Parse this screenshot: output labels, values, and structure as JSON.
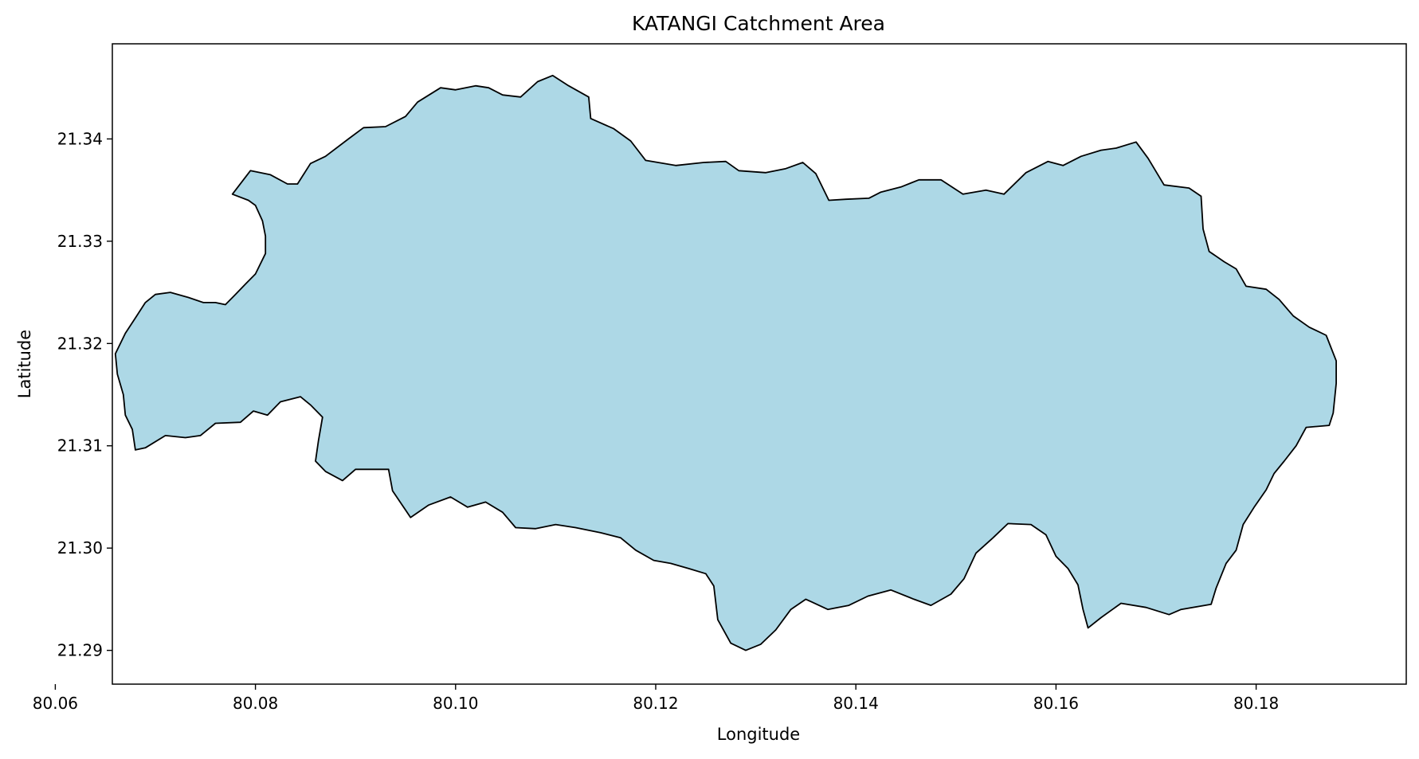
{
  "title": "KATANGI Catchment Area",
  "xlabel": "Longitude",
  "ylabel": "Latitude",
  "colors": {
    "fill": "#add8e6",
    "outline": "#000000"
  },
  "axes": {
    "xlim": [
      80.0657,
      80.195
    ],
    "ylim": [
      21.2867,
      21.3493
    ],
    "xticks": [
      {
        "value": 80.06,
        "label": "80.06"
      },
      {
        "value": 80.08,
        "label": "80.08"
      },
      {
        "value": 80.1,
        "label": "80.10"
      },
      {
        "value": 80.12,
        "label": "80.12"
      },
      {
        "value": 80.14,
        "label": "80.14"
      },
      {
        "value": 80.16,
        "label": "80.16"
      },
      {
        "value": 80.18,
        "label": "80.18"
      }
    ],
    "yticks": [
      {
        "value": 21.29,
        "label": "21.29"
      },
      {
        "value": 21.3,
        "label": "21.30"
      },
      {
        "value": 21.31,
        "label": "21.31"
      },
      {
        "value": 21.32,
        "label": "21.32"
      },
      {
        "value": 21.33,
        "label": "21.33"
      },
      {
        "value": 21.34,
        "label": "21.34"
      }
    ]
  },
  "chart_data": {
    "type": "area",
    "title": "KATANGI Catchment Area",
    "xlabel": "Longitude",
    "ylabel": "Latitude",
    "grid": false,
    "boundary": [
      [
        80.0777,
        21.3346
      ],
      [
        80.0795,
        21.3369
      ],
      [
        80.0815,
        21.3365
      ],
      [
        80.0832,
        21.3356
      ],
      [
        80.0842,
        21.3356
      ],
      [
        80.0855,
        21.3376
      ],
      [
        80.087,
        21.3383
      ],
      [
        80.0893,
        21.34
      ],
      [
        80.0908,
        21.3411
      ],
      [
        80.093,
        21.3412
      ],
      [
        80.095,
        21.3422
      ],
      [
        80.0962,
        21.3436
      ],
      [
        80.0985,
        21.345
      ],
      [
        80.1,
        21.3448
      ],
      [
        80.102,
        21.3452
      ],
      [
        80.1033,
        21.345
      ],
      [
        80.1047,
        21.3443
      ],
      [
        80.1065,
        21.3441
      ],
      [
        80.1082,
        21.3456
      ],
      [
        80.1097,
        21.3462
      ],
      [
        80.1113,
        21.3452
      ],
      [
        80.1133,
        21.3441
      ],
      [
        80.1135,
        21.342
      ],
      [
        80.1158,
        21.341
      ],
      [
        80.1175,
        21.3398
      ],
      [
        80.119,
        21.3379
      ],
      [
        80.122,
        21.3374
      ],
      [
        80.1248,
        21.3377
      ],
      [
        80.127,
        21.3378
      ],
      [
        80.1283,
        21.3369
      ],
      [
        80.131,
        21.3367
      ],
      [
        80.133,
        21.3371
      ],
      [
        80.1347,
        21.3377
      ],
      [
        80.136,
        21.3366
      ],
      [
        80.1373,
        21.334
      ],
      [
        80.139,
        21.3341
      ],
      [
        80.1413,
        21.3342
      ],
      [
        80.1425,
        21.3348
      ],
      [
        80.1445,
        21.3353
      ],
      [
        80.1463,
        21.336
      ],
      [
        80.1485,
        21.336
      ],
      [
        80.1507,
        21.3346
      ],
      [
        80.153,
        21.335
      ],
      [
        80.1548,
        21.3346
      ],
      [
        80.157,
        21.3367
      ],
      [
        80.1592,
        21.3378
      ],
      [
        80.1607,
        21.3374
      ],
      [
        80.1625,
        21.3383
      ],
      [
        80.1645,
        21.3389
      ],
      [
        80.166,
        21.3391
      ],
      [
        80.168,
        21.3397
      ],
      [
        80.1692,
        21.3381
      ],
      [
        80.1708,
        21.3355
      ],
      [
        80.1733,
        21.3352
      ],
      [
        80.1745,
        21.3344
      ],
      [
        80.1747,
        21.3312
      ],
      [
        80.1753,
        21.329
      ],
      [
        80.1768,
        21.328
      ],
      [
        80.178,
        21.3273
      ],
      [
        80.179,
        21.3256
      ],
      [
        80.181,
        21.3253
      ],
      [
        80.1823,
        21.3243
      ],
      [
        80.1837,
        21.3227
      ],
      [
        80.1853,
        21.3216
      ],
      [
        80.187,
        21.3208
      ],
      [
        80.188,
        21.3183
      ],
      [
        80.188,
        21.3161
      ],
      [
        80.1877,
        21.3132
      ],
      [
        80.1873,
        21.312
      ],
      [
        80.185,
        21.3118
      ],
      [
        80.184,
        21.31
      ],
      [
        80.1828,
        21.3085
      ],
      [
        80.1818,
        21.3073
      ],
      [
        80.181,
        21.3057
      ],
      [
        80.1798,
        21.304
      ],
      [
        80.1787,
        21.3023
      ],
      [
        80.178,
        21.2998
      ],
      [
        80.177,
        21.2985
      ],
      [
        80.176,
        21.2961
      ],
      [
        80.1755,
        21.2945
      ],
      [
        80.1725,
        21.294
      ],
      [
        80.1713,
        21.2935
      ],
      [
        80.169,
        21.2942
      ],
      [
        80.1665,
        21.2946
      ],
      [
        80.1645,
        21.2932
      ],
      [
        80.1632,
        21.2922
      ],
      [
        80.1627,
        21.294
      ],
      [
        80.1622,
        21.2964
      ],
      [
        80.1612,
        21.298
      ],
      [
        80.16,
        21.2992
      ],
      [
        80.159,
        21.3013
      ],
      [
        80.1575,
        21.3023
      ],
      [
        80.1552,
        21.3024
      ],
      [
        80.1537,
        21.301
      ],
      [
        80.152,
        21.2995
      ],
      [
        80.1508,
        21.297
      ],
      [
        80.1495,
        21.2955
      ],
      [
        80.1475,
        21.2944
      ],
      [
        80.1458,
        21.295
      ],
      [
        80.1435,
        21.2959
      ],
      [
        80.1412,
        21.2953
      ],
      [
        80.1393,
        21.2944
      ],
      [
        80.1372,
        21.294
      ],
      [
        80.135,
        21.295
      ],
      [
        80.1335,
        21.294
      ],
      [
        80.132,
        21.292
      ],
      [
        80.1305,
        21.2906
      ],
      [
        80.129,
        21.29
      ],
      [
        80.1275,
        21.2907
      ],
      [
        80.1262,
        21.293
      ],
      [
        80.1258,
        21.2963
      ],
      [
        80.125,
        21.2975
      ],
      [
        80.1233,
        21.298
      ],
      [
        80.1215,
        21.2985
      ],
      [
        80.1198,
        21.2988
      ],
      [
        80.118,
        21.2998
      ],
      [
        80.1165,
        21.301
      ],
      [
        80.1145,
        21.3015
      ],
      [
        80.112,
        21.302
      ],
      [
        80.11,
        21.3023
      ],
      [
        80.108,
        21.3019
      ],
      [
        80.106,
        21.302
      ],
      [
        80.1047,
        21.3035
      ],
      [
        80.103,
        21.3045
      ],
      [
        80.1012,
        21.304
      ],
      [
        80.0995,
        21.305
      ],
      [
        80.0973,
        21.3042
      ],
      [
        80.0955,
        21.303
      ],
      [
        80.0937,
        21.3056
      ],
      [
        80.0933,
        21.3077
      ],
      [
        80.09,
        21.3077
      ],
      [
        80.0887,
        21.3066
      ],
      [
        80.087,
        21.3075
      ],
      [
        80.086,
        21.3085
      ],
      [
        80.0863,
        21.3105
      ],
      [
        80.0867,
        21.3128
      ],
      [
        80.0855,
        21.314
      ],
      [
        80.0845,
        21.3148
      ],
      [
        80.0825,
        21.3143
      ],
      [
        80.0812,
        21.313
      ],
      [
        80.0798,
        21.3134
      ],
      [
        80.0785,
        21.3123
      ],
      [
        80.076,
        21.3122
      ],
      [
        80.0745,
        21.311
      ],
      [
        80.073,
        21.3108
      ],
      [
        80.071,
        21.311
      ],
      [
        80.069,
        21.3098
      ],
      [
        80.068,
        21.3096
      ],
      [
        80.0677,
        21.3116
      ],
      [
        80.067,
        21.313
      ],
      [
        80.0668,
        21.315
      ],
      [
        80.0662,
        21.317
      ],
      [
        80.066,
        21.319
      ],
      [
        80.067,
        21.321
      ],
      [
        80.068,
        21.3225
      ],
      [
        80.069,
        21.324
      ],
      [
        80.07,
        21.3248
      ],
      [
        80.0715,
        21.325
      ],
      [
        80.0733,
        21.3245
      ],
      [
        80.0748,
        21.324
      ],
      [
        80.076,
        21.324
      ],
      [
        80.077,
        21.3238
      ],
      [
        80.078,
        21.3248
      ],
      [
        80.079,
        21.3258
      ],
      [
        80.08,
        21.3268
      ],
      [
        80.081,
        21.3288
      ],
      [
        80.081,
        21.3305
      ],
      [
        80.0807,
        21.332
      ],
      [
        80.08,
        21.3335
      ],
      [
        80.0793,
        21.334
      ],
      [
        80.0777,
        21.3346
      ]
    ]
  }
}
